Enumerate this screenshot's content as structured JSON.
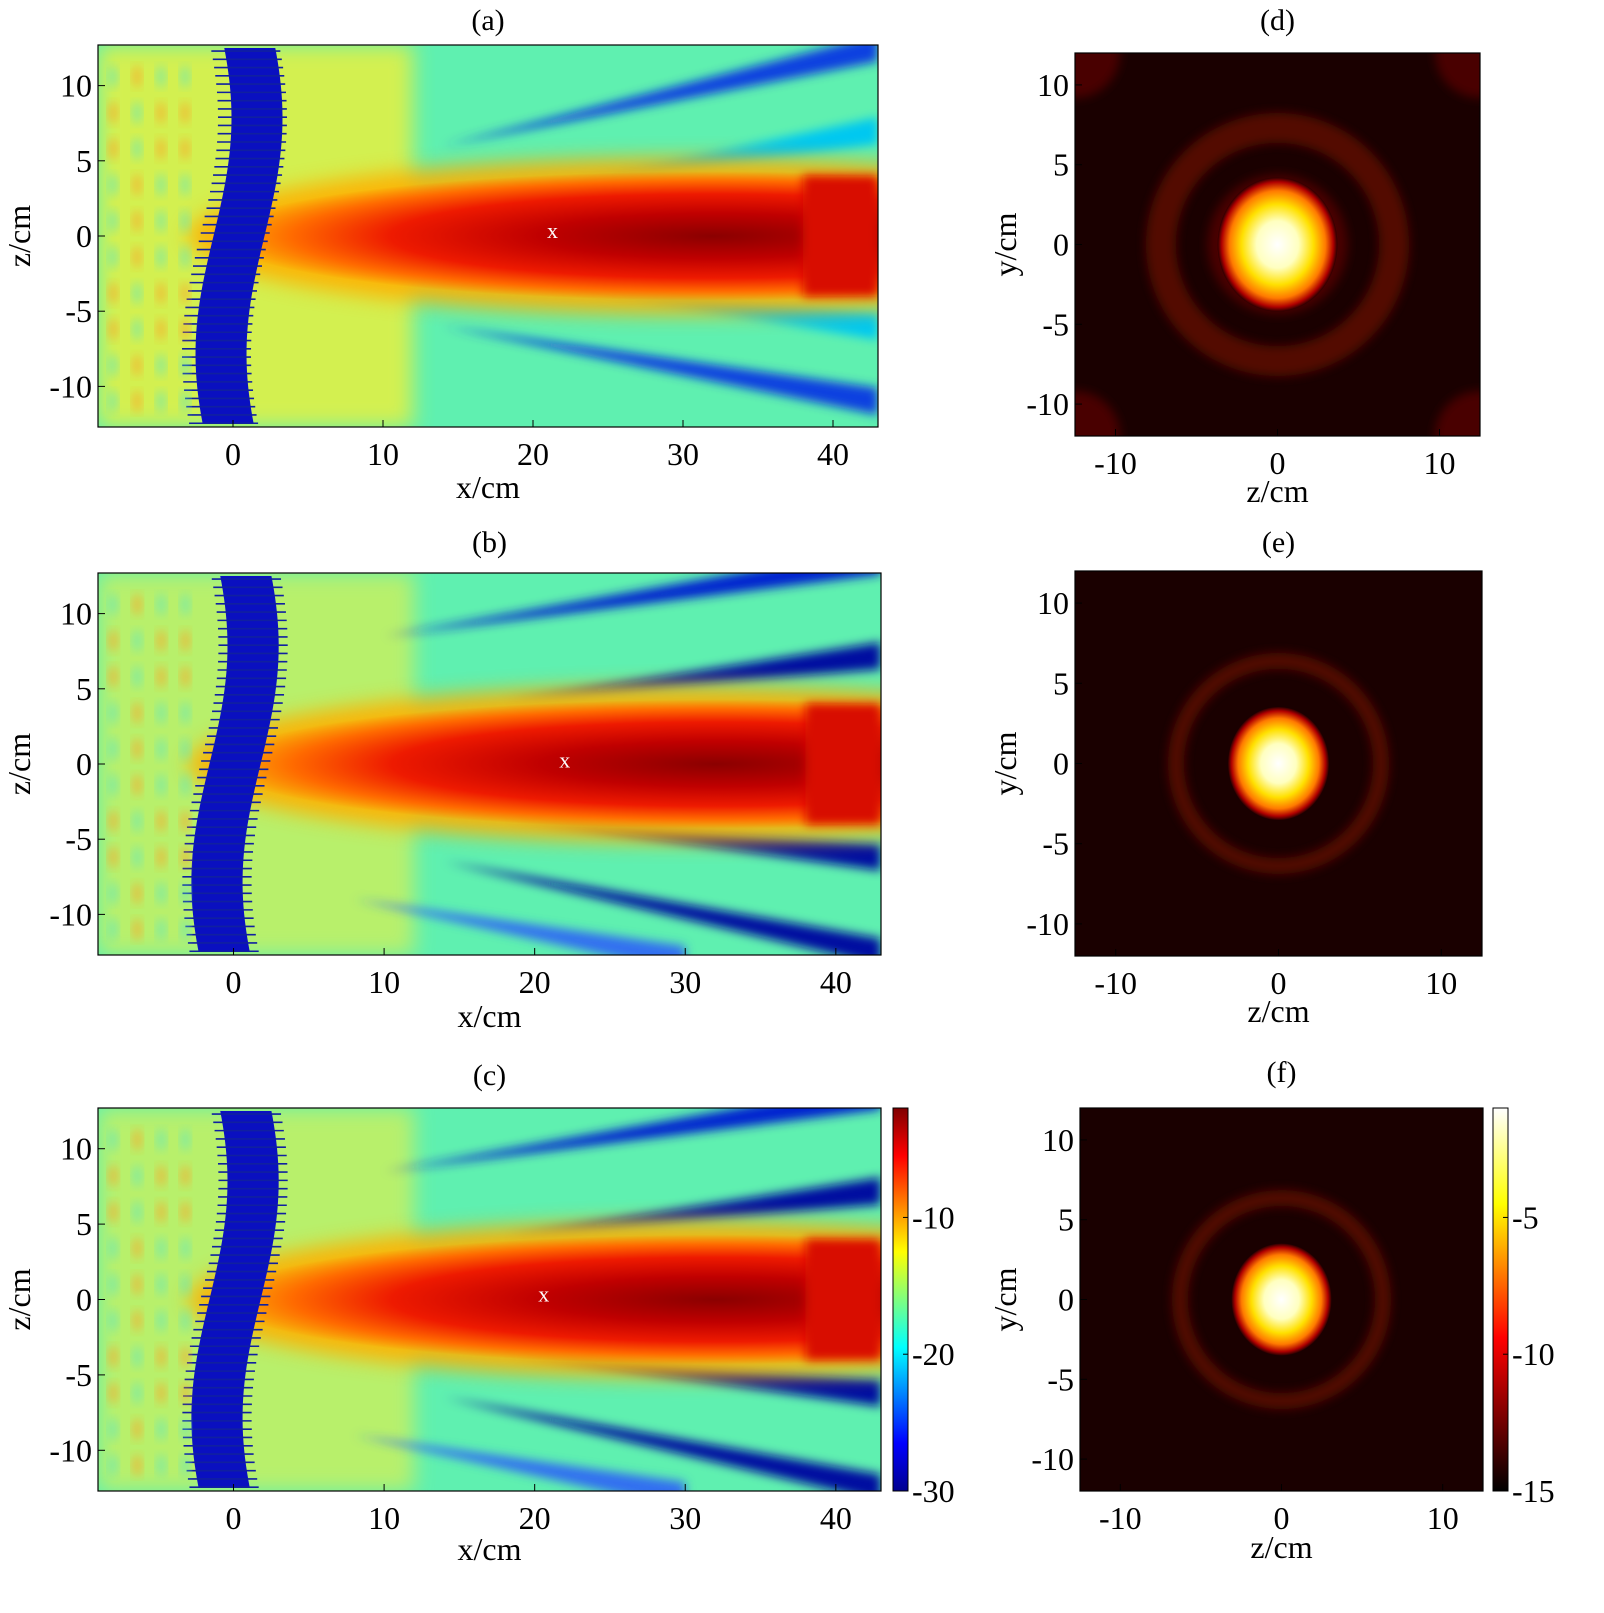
{
  "chart_data": [
    {
      "panel": "(a)",
      "type": "heatmap",
      "xlabel": "x/cm",
      "ylabel": "z/cm",
      "xlim": [
        -9,
        43
      ],
      "ylim": [
        -12.7,
        12.7
      ],
      "xticks": [
        0,
        10,
        20,
        30,
        40
      ],
      "yticks": [
        10,
        5,
        0,
        -5,
        -10
      ],
      "colormap": "jet",
      "marker": {
        "label": "x",
        "x": 21.3,
        "y": 0.4
      }
    },
    {
      "panel": "(b)",
      "type": "heatmap",
      "xlabel": "x/cm",
      "ylabel": "z/cm",
      "xlim": [
        -9,
        43
      ],
      "ylim": [
        -12.7,
        12.7
      ],
      "xticks": [
        0,
        10,
        20,
        30,
        40
      ],
      "yticks": [
        10,
        5,
        0,
        -5,
        -10
      ],
      "colormap": "jet",
      "marker": {
        "label": "x",
        "x": 22.0,
        "y": 0.3
      }
    },
    {
      "panel": "(c)",
      "type": "heatmap",
      "xlabel": "x/cm",
      "ylabel": "z/cm",
      "xlim": [
        -9,
        43
      ],
      "ylim": [
        -12.7,
        12.7
      ],
      "xticks": [
        0,
        10,
        20,
        30,
        40
      ],
      "yticks": [
        10,
        5,
        0,
        -5,
        -10
      ],
      "colormap": "jet",
      "marker": {
        "label": "x",
        "x": 20.6,
        "y": 0.4
      },
      "colorbar": {
        "ticks": [
          -10,
          -20,
          -30
        ],
        "range": [
          -30,
          -2
        ]
      }
    },
    {
      "panel": "(d)",
      "type": "heatmap",
      "xlabel": "z/cm",
      "ylabel": "y/cm",
      "xlim": [
        -12.5,
        12.5
      ],
      "ylim": [
        -12,
        12
      ],
      "xticks": [
        -10,
        0,
        10
      ],
      "yticks": [
        10,
        5,
        0,
        -5,
        -10
      ],
      "colormap": "hot"
    },
    {
      "panel": "(e)",
      "type": "heatmap",
      "xlabel": "z/cm",
      "ylabel": "y/cm",
      "xlim": [
        -12.5,
        12.5
      ],
      "ylim": [
        -12,
        12
      ],
      "xticks": [
        -10,
        0,
        10
      ],
      "yticks": [
        10,
        5,
        0,
        -5,
        -10
      ],
      "colormap": "hot"
    },
    {
      "panel": "(f)",
      "type": "heatmap",
      "xlabel": "z/cm",
      "ylabel": "y/cm",
      "xlim": [
        -12.5,
        12.5
      ],
      "ylim": [
        -12,
        12
      ],
      "xticks": [
        -10,
        0,
        10
      ],
      "yticks": [
        10,
        5,
        0,
        -5,
        -10
      ],
      "colormap": "hot",
      "colorbar": {
        "ticks": [
          -5,
          -10,
          -15
        ],
        "range": [
          -15,
          -1
        ]
      }
    }
  ]
}
